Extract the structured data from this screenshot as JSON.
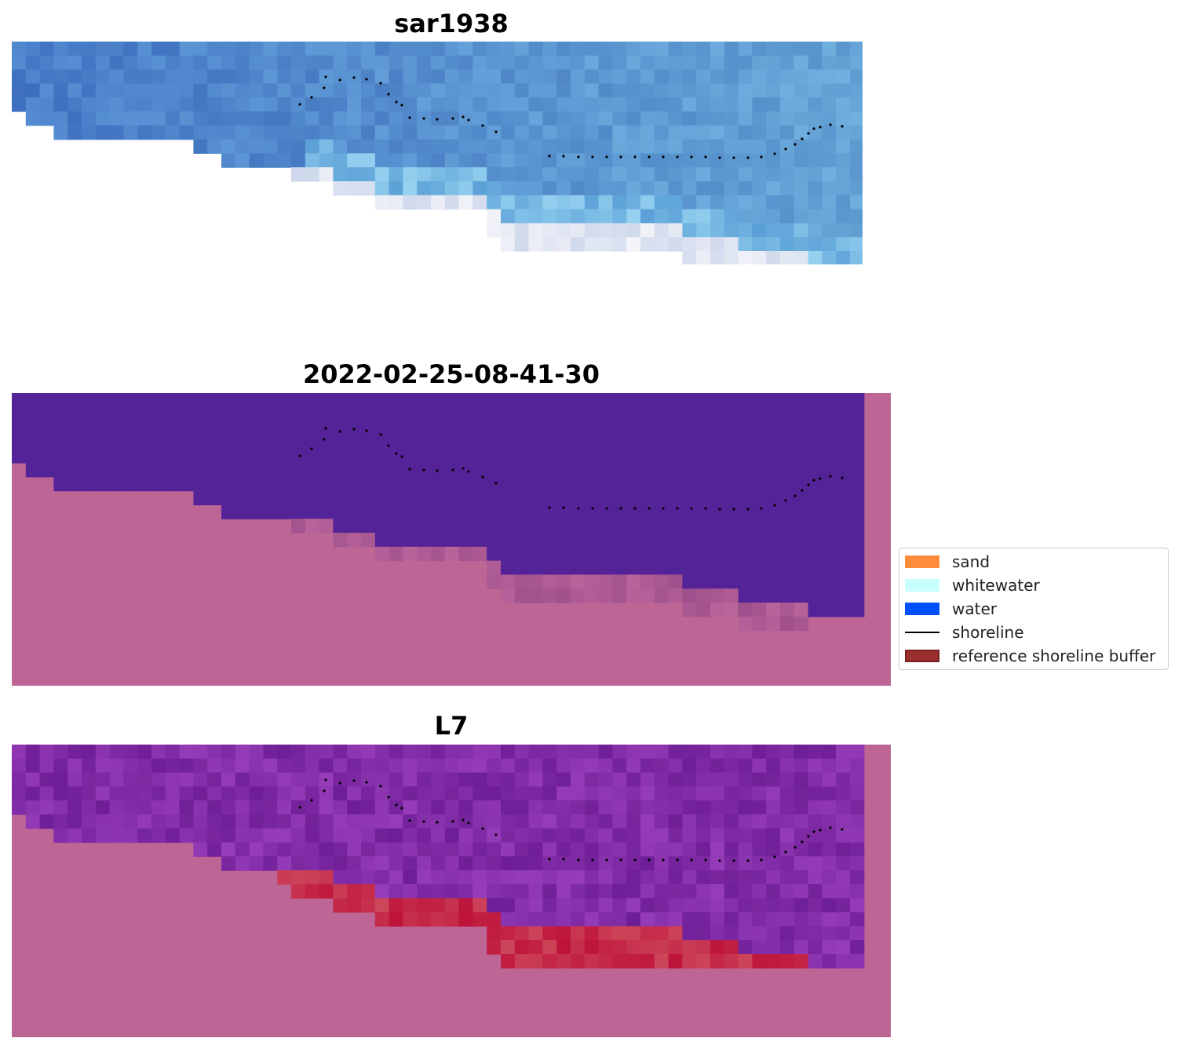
{
  "panels": [
    {
      "title": "sar1938"
    },
    {
      "title": "2022-02-25-08-41-30"
    },
    {
      "title": "L7"
    }
  ],
  "legend": {
    "items": [
      {
        "label": "sand",
        "color": "#ff8c3c",
        "kind": "patch"
      },
      {
        "label": "whitewater",
        "color": "#c8ffff",
        "kind": "patch"
      },
      {
        "label": "water",
        "color": "#0050ff",
        "kind": "patch"
      },
      {
        "label": "shoreline",
        "color": "#000000",
        "kind": "line"
      },
      {
        "label": "reference shoreline buffer",
        "color": "#9b2f2f",
        "kind": "patch"
      }
    ]
  },
  "colors": {
    "nodata": "#ffffff",
    "background_pink": "#bd6696",
    "classified_water": "#532397",
    "buffer_red": "#be0033",
    "shoreline_dots": "#000000"
  }
}
